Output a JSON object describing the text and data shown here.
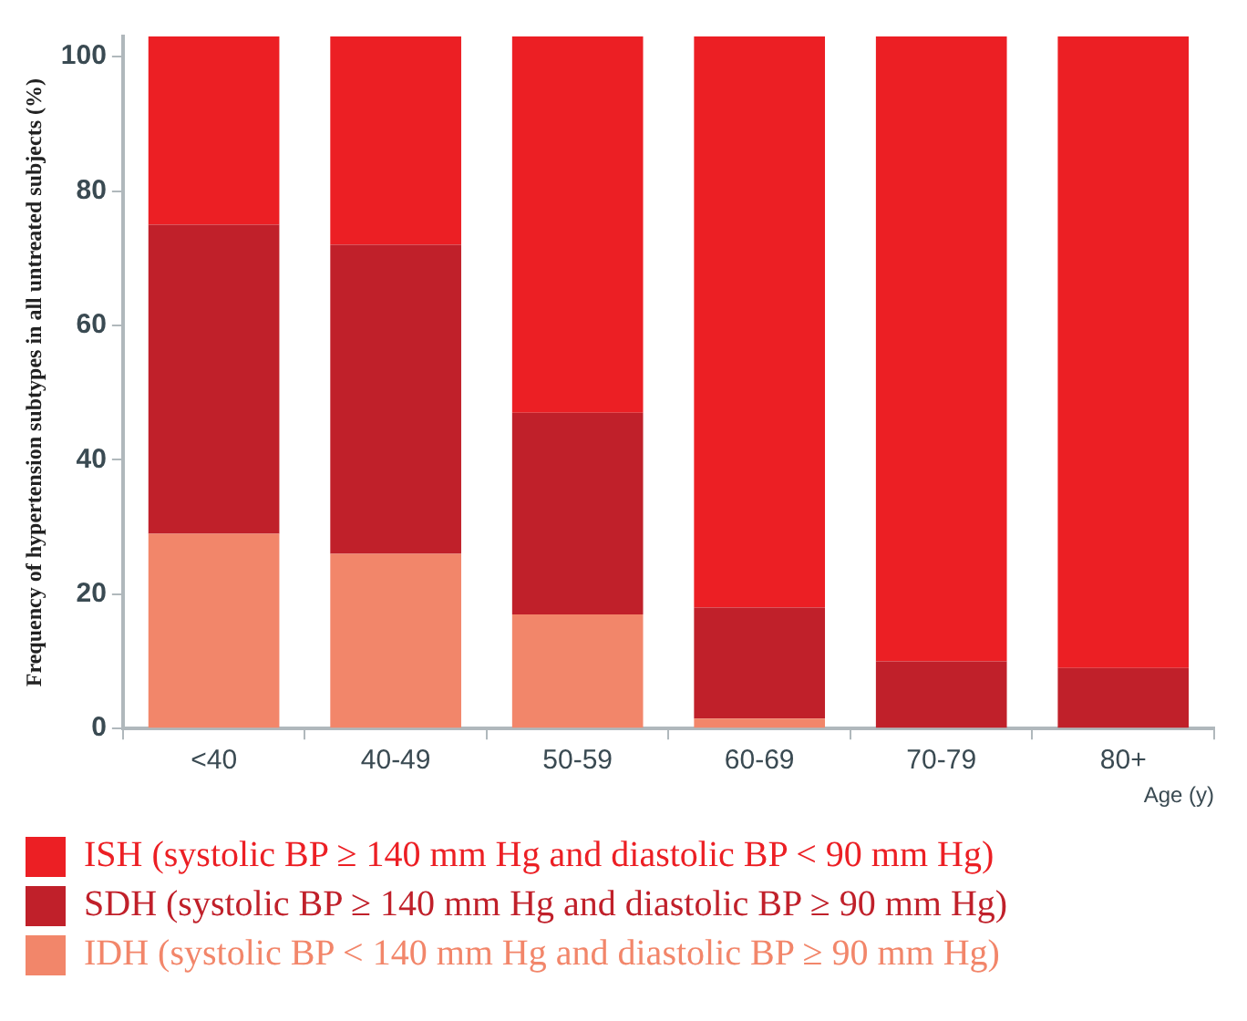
{
  "chart_data": {
    "type": "bar",
    "stacked": true,
    "ylabel": "Frequency of hypertension subtypes in all untreated subjects (%)",
    "xlabel": "Age (y)",
    "categories": [
      "<40",
      "40-49",
      "50-59",
      "60-69",
      "70-79",
      "80+"
    ],
    "series": [
      {
        "name": "IDH (systolic BP < 140 mm Hg and diastolic BP ≥ 90 mm Hg)",
        "color": "#f2866a",
        "values": [
          29,
          26,
          17,
          1.5,
          0,
          0
        ]
      },
      {
        "name": "SDH (systolic BP ≥ 140 mm Hg and diastolic BP ≥ 90 mm Hg)",
        "color": "#c0202a",
        "values": [
          46,
          46,
          30,
          16.5,
          10,
          9
        ]
      },
      {
        "name": "ISH (systolic BP ≥ 140 mm Hg and diastolic BP < 90 mm Hg)",
        "color": "#ec1f24",
        "values": [
          28,
          31,
          56,
          85,
          93,
          94
        ]
      }
    ],
    "ylim": [
      0,
      103
    ],
    "yticks": [
      0,
      20,
      40,
      60,
      80,
      100
    ],
    "grid": false,
    "legend": "bottom"
  }
}
